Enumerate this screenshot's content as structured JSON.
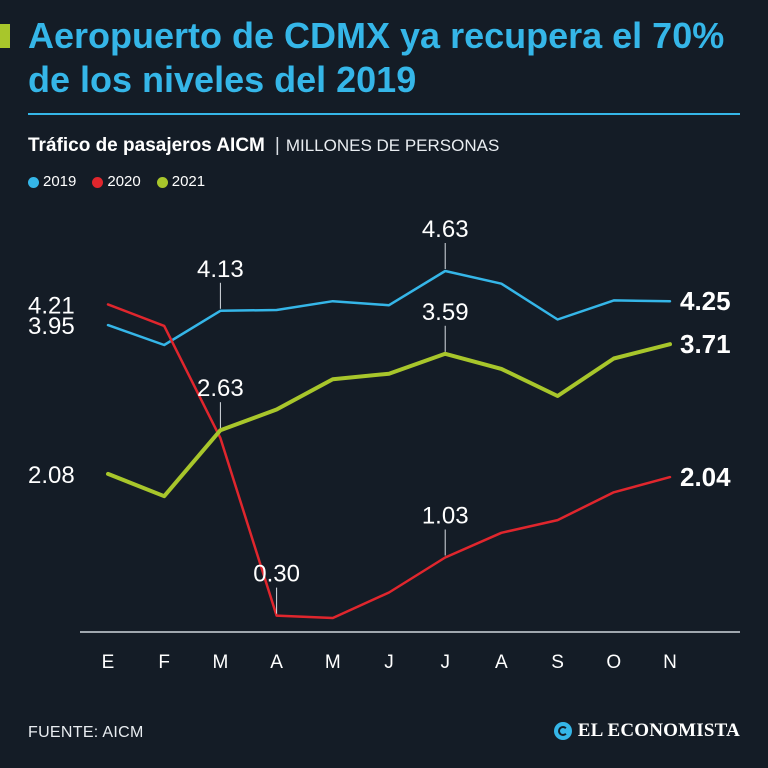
{
  "header": {
    "title": "Aeropuerto de CDMX ya recupera el 70% de los niveles del 2019"
  },
  "subtitle": {
    "main": "Tráfico de pasajeros AICM",
    "separator": "|",
    "unit": "MILLONES DE PERSONAS"
  },
  "footer": {
    "source": "FUENTE: AICM",
    "brand": "EL ECONOMISTA"
  },
  "colors": {
    "background": "#141c26",
    "accent": "#a8c62b",
    "title": "#35b6e8",
    "s2019": "#35b6e8",
    "s2020": "#e0262d",
    "s2021": "#a8c62b"
  },
  "chart_data": {
    "type": "line",
    "title": "Tráfico de pasajeros AICM",
    "ylabel": "MILLONES DE PERSONAS",
    "xlabel": "",
    "categories": [
      "E",
      "F",
      "M",
      "A",
      "M",
      "J",
      "J",
      "A",
      "S",
      "O",
      "N"
    ],
    "ylim": [
      0,
      4.63
    ],
    "grid": false,
    "legend": "top-left",
    "series": [
      {
        "name": "2019",
        "color": "#35b6e8",
        "values": [
          3.95,
          3.7,
          4.13,
          4.14,
          4.25,
          4.2,
          4.63,
          4.47,
          4.02,
          4.26,
          4.25
        ],
        "labels": [
          {
            "index": 0,
            "text": "3.95",
            "position": "left"
          },
          {
            "index": 2,
            "text": "4.13",
            "position": "above"
          },
          {
            "index": 6,
            "text": "4.63",
            "position": "above"
          },
          {
            "index": 10,
            "text": "4.25",
            "position": "end"
          }
        ]
      },
      {
        "name": "2020",
        "color": "#e0262d",
        "values": [
          4.21,
          3.94,
          2.53,
          0.3,
          0.27,
          0.59,
          1.03,
          1.34,
          1.5,
          1.85,
          2.04
        ],
        "labels": [
          {
            "index": 0,
            "text": "4.21",
            "position": "left"
          },
          {
            "index": 3,
            "text": "0.30",
            "position": "above"
          },
          {
            "index": 6,
            "text": "1.03",
            "position": "above"
          },
          {
            "index": 10,
            "text": "2.04",
            "position": "end"
          }
        ]
      },
      {
        "name": "2021",
        "color": "#a8c62b",
        "values": [
          2.08,
          1.8,
          2.63,
          2.89,
          3.27,
          3.34,
          3.59,
          3.4,
          3.06,
          3.53,
          3.71
        ],
        "labels": [
          {
            "index": 0,
            "text": "2.08",
            "position": "left"
          },
          {
            "index": 2,
            "text": "2.63",
            "position": "above"
          },
          {
            "index": 6,
            "text": "3.59",
            "position": "above"
          },
          {
            "index": 10,
            "text": "3.71",
            "position": "end"
          }
        ]
      }
    ]
  }
}
